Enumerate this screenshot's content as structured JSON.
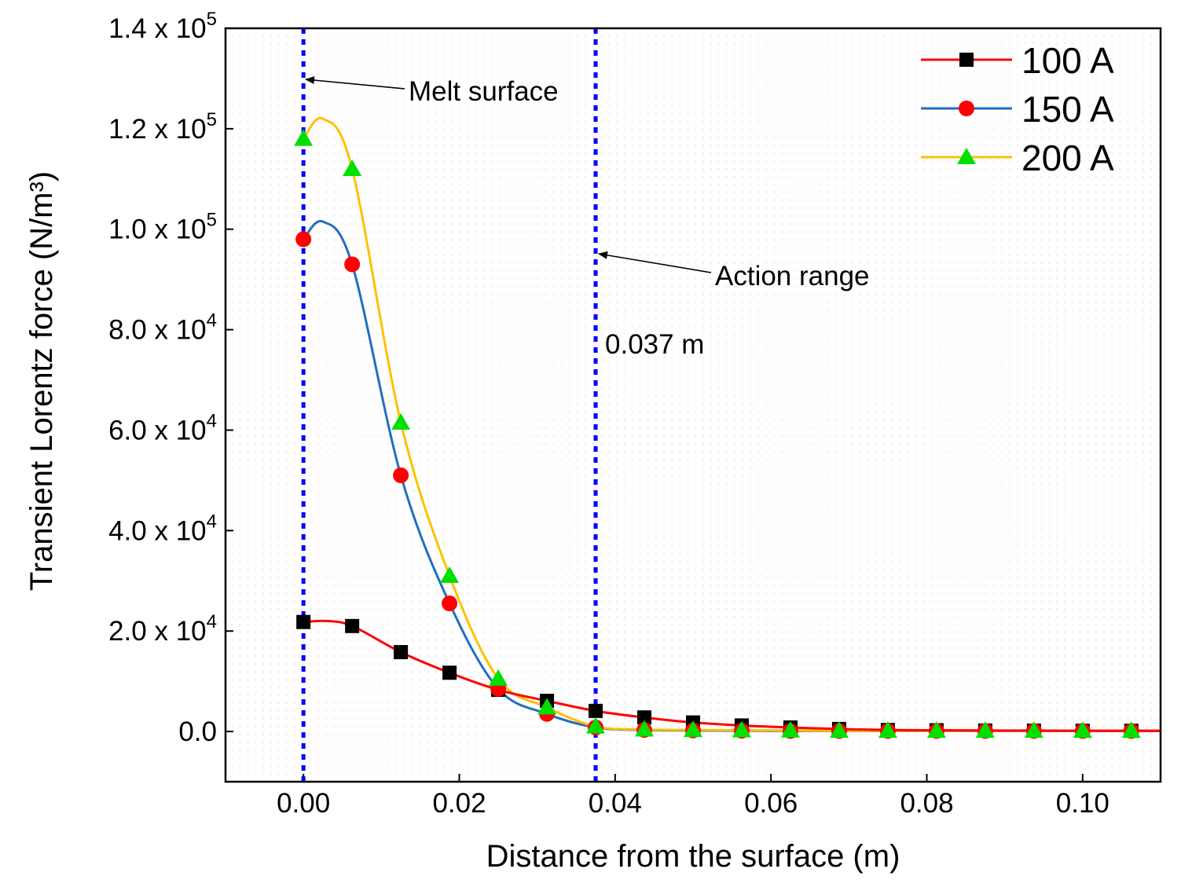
{
  "chart_data": {
    "type": "line",
    "xlabel": "Distance from the surface (m)",
    "ylabel": "Transient Lorentz force (N/m³)",
    "xlim": [
      -0.01,
      0.11
    ],
    "ylim": [
      -10000,
      140000
    ],
    "x_ticks": [
      {
        "value": 0.0,
        "label": "0.00"
      },
      {
        "value": 0.02,
        "label": "0.02"
      },
      {
        "value": 0.04,
        "label": "0.04"
      },
      {
        "value": 0.06,
        "label": "0.06"
      },
      {
        "value": 0.08,
        "label": "0.08"
      },
      {
        "value": 0.1,
        "label": "0.10"
      }
    ],
    "y_ticks": [
      {
        "value": 0,
        "mantissa": "0.0",
        "exp": ""
      },
      {
        "value": 20000,
        "mantissa": "2.0 x 10",
        "exp": "4"
      },
      {
        "value": 40000,
        "mantissa": "4.0 x 10",
        "exp": "4"
      },
      {
        "value": 60000,
        "mantissa": "6.0 x 10",
        "exp": "4"
      },
      {
        "value": 80000,
        "mantissa": "8.0 x 10",
        "exp": "4"
      },
      {
        "value": 100000,
        "mantissa": "1.0 x 10",
        "exp": "5"
      },
      {
        "value": 120000,
        "mantissa": "1.2 x 10",
        "exp": "5"
      },
      {
        "value": 140000,
        "mantissa": "1.4 x 10",
        "exp": "5"
      }
    ],
    "x": [
      0.0,
      0.00625,
      0.0125,
      0.01875,
      0.025,
      0.03125,
      0.0375,
      0.04375,
      0.05,
      0.05625,
      0.0625,
      0.06875,
      0.075,
      0.08125,
      0.0875,
      0.09375,
      0.1,
      0.10625
    ],
    "series": [
      {
        "name": "100 A",
        "line_color": "#ff0000",
        "marker": "square",
        "marker_color": "#000000",
        "values": [
          21800,
          21000,
          15800,
          11700,
          8300,
          6100,
          4100,
          2800,
          1800,
          1200,
          800,
          500,
          300,
          250,
          200,
          180,
          150,
          150
        ],
        "curve": [
          [
            0.0,
            21800
          ],
          [
            0.003,
            22000
          ],
          [
            0.00625,
            21000
          ],
          [
            0.0125,
            15800
          ],
          [
            0.01875,
            11700
          ],
          [
            0.025,
            8300
          ],
          [
            0.03125,
            6100
          ],
          [
            0.0375,
            4100
          ],
          [
            0.04375,
            2800
          ],
          [
            0.05,
            1800
          ],
          [
            0.05625,
            1200
          ],
          [
            0.0625,
            800
          ],
          [
            0.06875,
            500
          ],
          [
            0.075,
            300
          ],
          [
            0.08125,
            250
          ],
          [
            0.0875,
            200
          ],
          [
            0.09375,
            180
          ],
          [
            0.1,
            150
          ],
          [
            0.11,
            150
          ]
        ]
      },
      {
        "name": "150 A",
        "line_color": "#1f6fbf",
        "marker": "circle",
        "marker_color": "#ff0000",
        "values": [
          98000,
          93000,
          51000,
          25500,
          8500,
          3500,
          800,
          300,
          200,
          150,
          100,
          100,
          100,
          100,
          100,
          100,
          100,
          100
        ],
        "curve": [
          [
            0.0,
            98000
          ],
          [
            0.0025,
            101500
          ],
          [
            0.00625,
            93000
          ],
          [
            0.0125,
            51000
          ],
          [
            0.01875,
            25500
          ],
          [
            0.025,
            8500
          ],
          [
            0.03125,
            3500
          ],
          [
            0.0375,
            800
          ],
          [
            0.04375,
            300
          ],
          [
            0.05,
            200
          ],
          [
            0.05625,
            150
          ],
          [
            0.0625,
            100
          ],
          [
            0.07,
            100
          ],
          [
            0.08,
            100
          ],
          [
            0.09,
            100
          ],
          [
            0.1,
            100
          ],
          [
            0.11,
            100
          ]
        ]
      },
      {
        "name": "200 A",
        "line_color": "#ffc000",
        "marker": "triangle",
        "marker_color": "#00e000",
        "values": [
          118000,
          112000,
          61500,
          31000,
          10500,
          4800,
          1000,
          400,
          300,
          250,
          200,
          150,
          150,
          150,
          150,
          150,
          150,
          150
        ],
        "curve": [
          [
            0.0,
            118000
          ],
          [
            0.0025,
            122000
          ],
          [
            0.00625,
            112000
          ],
          [
            0.0125,
            61500
          ],
          [
            0.01875,
            31000
          ],
          [
            0.025,
            10500
          ],
          [
            0.03125,
            4800
          ],
          [
            0.0375,
            1000
          ],
          [
            0.04375,
            400
          ],
          [
            0.05,
            300
          ],
          [
            0.05625,
            250
          ],
          [
            0.0625,
            200
          ],
          [
            0.07,
            150
          ],
          [
            0.08,
            150
          ],
          [
            0.09,
            150
          ],
          [
            0.1,
            150
          ],
          [
            0.11,
            150
          ]
        ]
      }
    ],
    "reference_lines": [
      {
        "x": 0.0,
        "color": "#0000ff",
        "style": "dotted"
      },
      {
        "x": 0.0375,
        "color": "#0000ff",
        "style": "dotted"
      }
    ],
    "annotations": {
      "melt_surface": "Melt surface",
      "action_range": "Action range",
      "depth_value": "0.037 m"
    },
    "legend_position": "top-right"
  }
}
